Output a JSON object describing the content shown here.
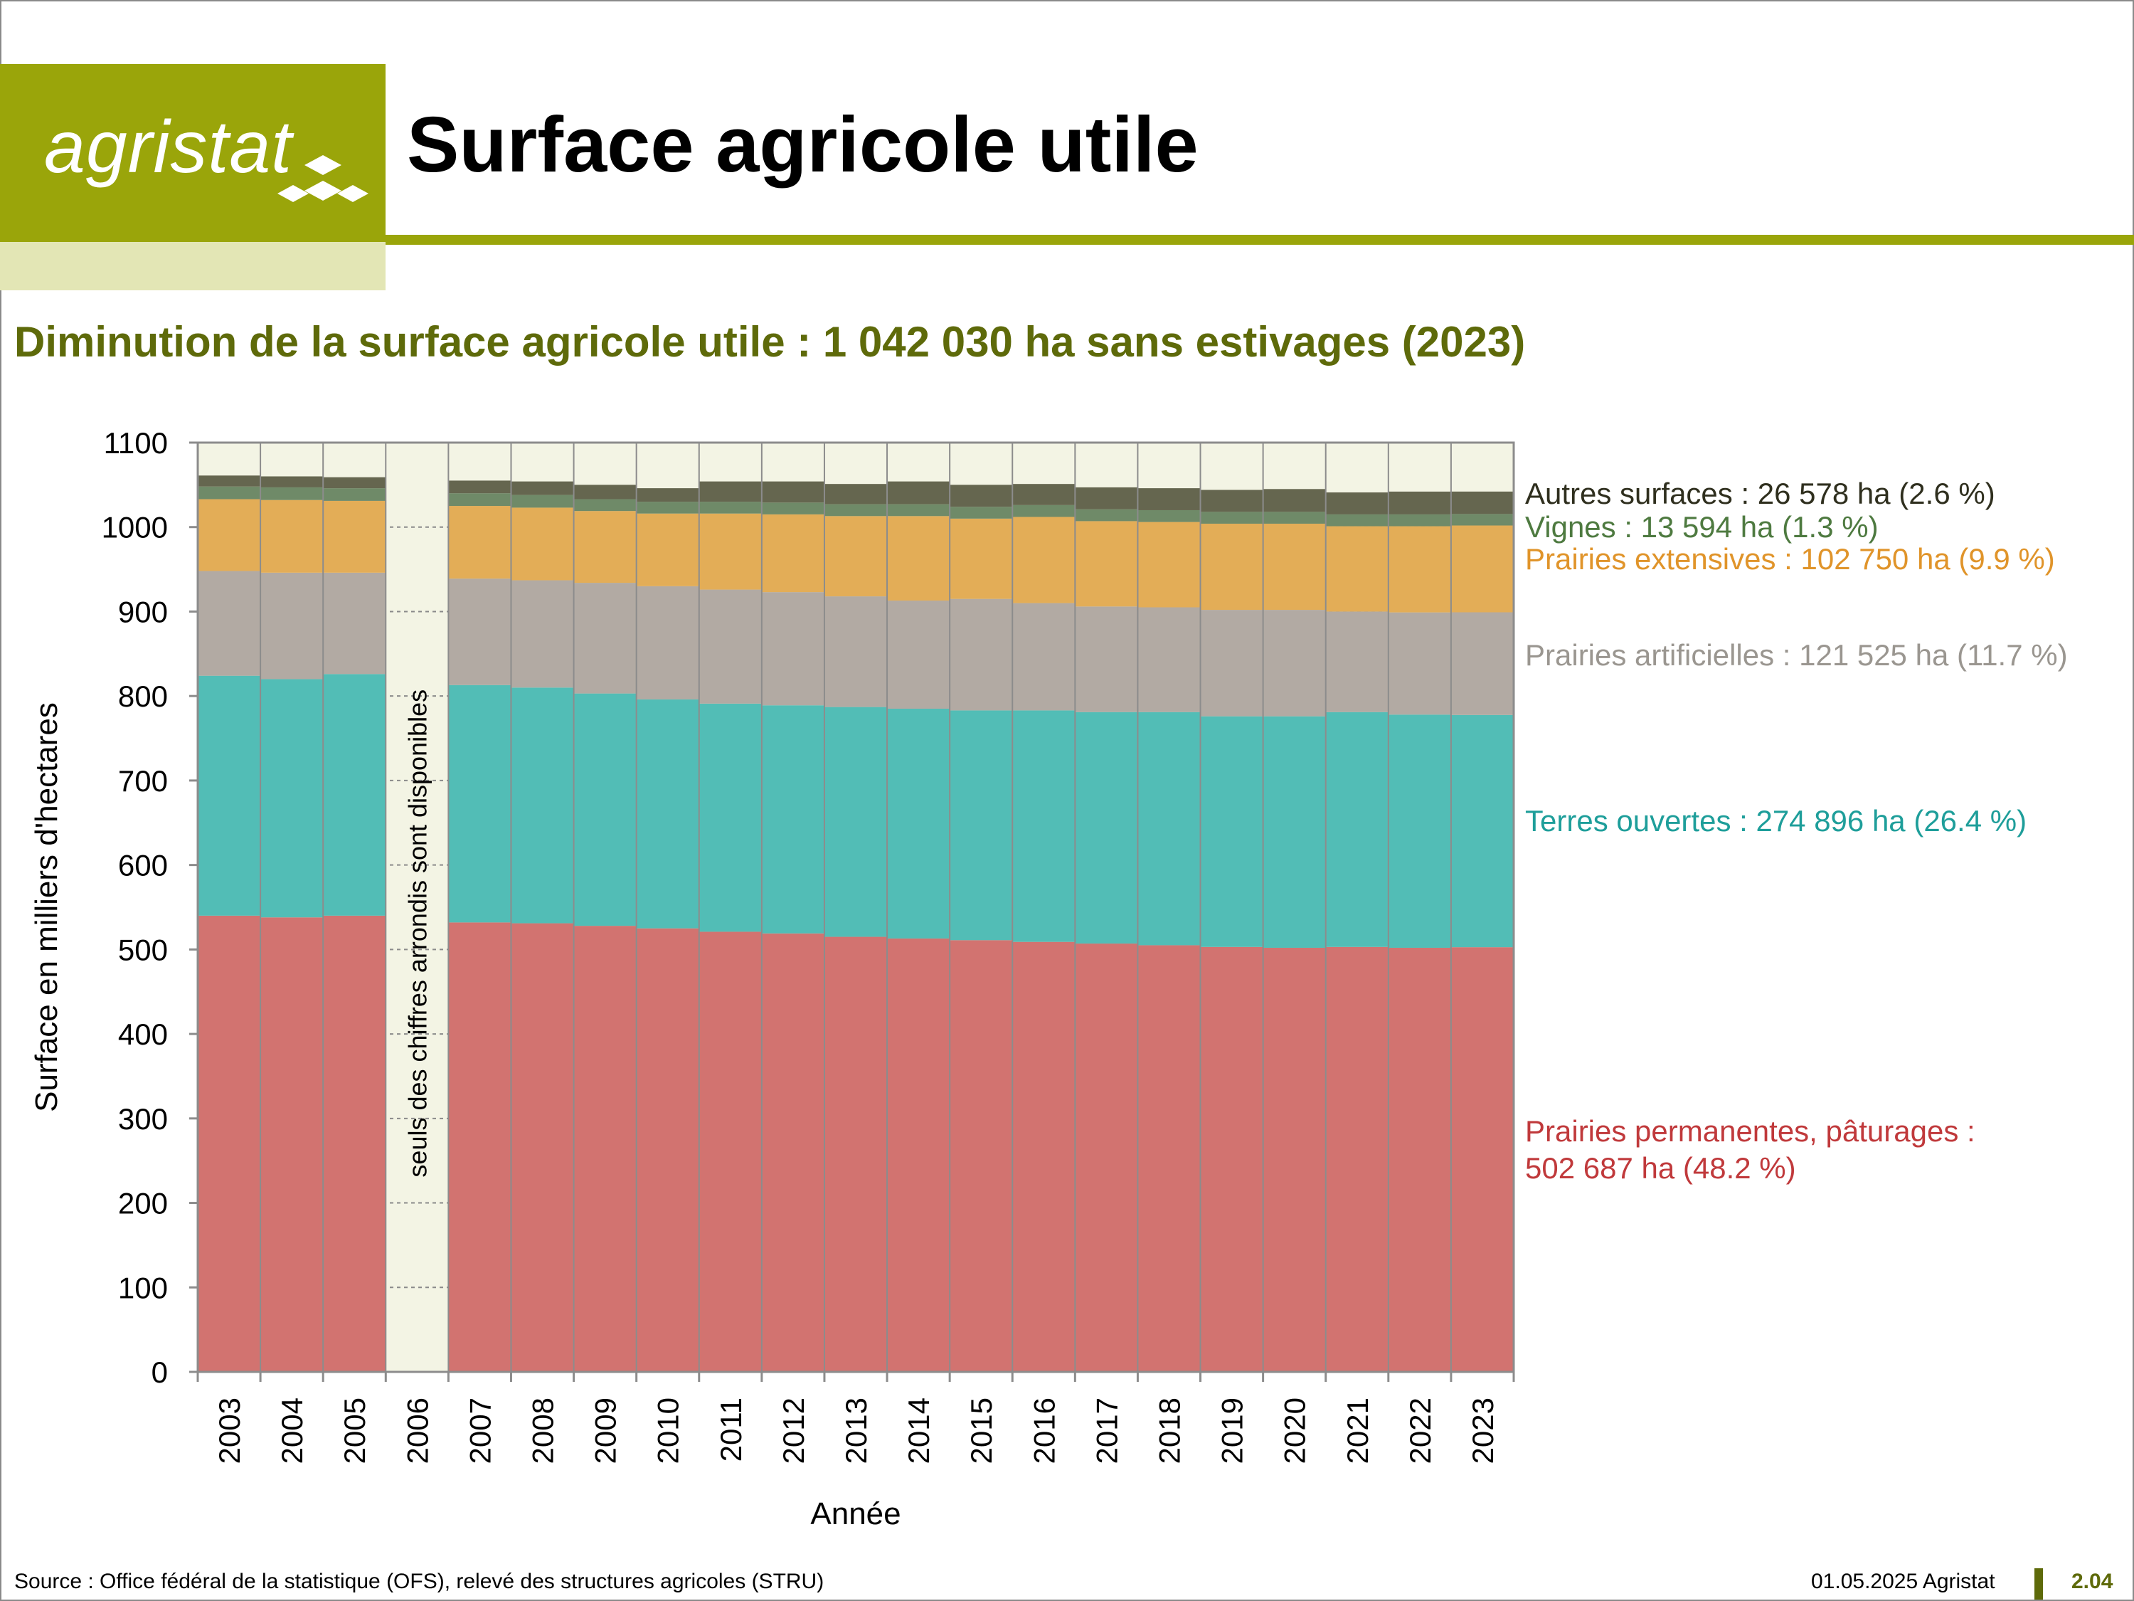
{
  "header": {
    "logo_text": "agristat",
    "title": "Surface agricole utile",
    "brand_color": "#9aa50a"
  },
  "subtitle": "Diminution de la surface agricole utile : 1 042 030 ha sans estivages (2023)",
  "footer": {
    "source": "Source : Office fédéral de la statistique (OFS), relevé des structures agricoles (STRU)",
    "date": "01.05.2025 Agristat",
    "page": "2.04"
  },
  "chart_data": {
    "type": "bar",
    "stacked": true,
    "categories": [
      "2003",
      "2004",
      "2005",
      "2006",
      "2007",
      "2008",
      "2009",
      "2010",
      "2011",
      "2012",
      "2013",
      "2014",
      "2015",
      "2016",
      "2017",
      "2018",
      "2019",
      "2020",
      "2021",
      "2022",
      "2023"
    ],
    "missing_category": "2006",
    "missing_note": "seuls des chiffres arrondis sont disponibles",
    "xlabel": "Année",
    "ylabel": "Surface en milliers d'hectares",
    "ylim": [
      0,
      1100
    ],
    "yticks": [
      0,
      100,
      200,
      300,
      400,
      500,
      600,
      700,
      800,
      900,
      1000,
      1100
    ],
    "grid": "horizontal dotted",
    "legend": "right, as direct labels",
    "series": [
      {
        "name": "Prairies permanentes, pâturages",
        "color": "#d27370",
        "label_color": "#c0393b",
        "label_lines": [
          "Prairies permanentes, pâturages :",
          "502 687 ha (48.2 %)"
        ],
        "values": [
          540,
          538,
          540,
          null,
          532,
          531,
          528,
          525,
          521,
          519,
          515,
          513,
          511,
          509,
          507,
          505,
          503,
          502,
          503,
          502,
          502.687
        ]
      },
      {
        "name": "Terres ouvertes",
        "color": "#52bdb6",
        "label_color": "#1e9e9a",
        "label_lines": [
          "Terres ouvertes : 274 896 ha (26.4 %)"
        ],
        "values": [
          284,
          282,
          286,
          null,
          281,
          279,
          275,
          271,
          270,
          270,
          272,
          272,
          272,
          274,
          274,
          276,
          273,
          274,
          278,
          276,
          274.896
        ]
      },
      {
        "name": "Prairies artificielles",
        "color": "#b2aaa3",
        "label_color": "#9a9690",
        "label_lines": [
          "Prairies artificielles : 121 525 ha (11.7 %)"
        ],
        "values": [
          124,
          126,
          120,
          null,
          126,
          127,
          131,
          134,
          135,
          134,
          131,
          128,
          132,
          127,
          125,
          124,
          126,
          126,
          119,
          121,
          121.525
        ]
      },
      {
        "name": "Prairies extensives",
        "color": "#e3ad57",
        "label_color": "#e0942a",
        "label_lines": [
          "Prairies extensives : 102 750 ha (9.9 %)"
        ],
        "values": [
          85,
          86,
          85,
          null,
          86,
          86,
          85,
          86,
          90,
          92,
          95,
          100,
          95,
          102,
          101,
          101,
          102,
          102,
          101,
          102,
          102.75
        ]
      },
      {
        "name": "Vignes",
        "color": "#6f8a68",
        "label_color": "#4e7a40",
        "label_lines": [
          "Vignes : 13 594 ha (1.3 %)"
        ],
        "values": [
          15,
          15,
          15,
          null,
          15,
          15,
          14,
          14,
          14,
          14,
          14,
          14,
          14,
          14,
          14,
          14,
          14,
          14,
          14,
          14,
          13.594
        ]
      },
      {
        "name": "Autres surfaces",
        "color": "#65664f",
        "label_color": "#2f2f1e",
        "label_lines": [
          "Autres surfaces : 26 578 ha (2.6 %)"
        ],
        "values": [
          13,
          13,
          13,
          null,
          15,
          16,
          17,
          16,
          24,
          25,
          24,
          27,
          26,
          25,
          26,
          26,
          26,
          27,
          26,
          27,
          26.578
        ]
      }
    ]
  }
}
